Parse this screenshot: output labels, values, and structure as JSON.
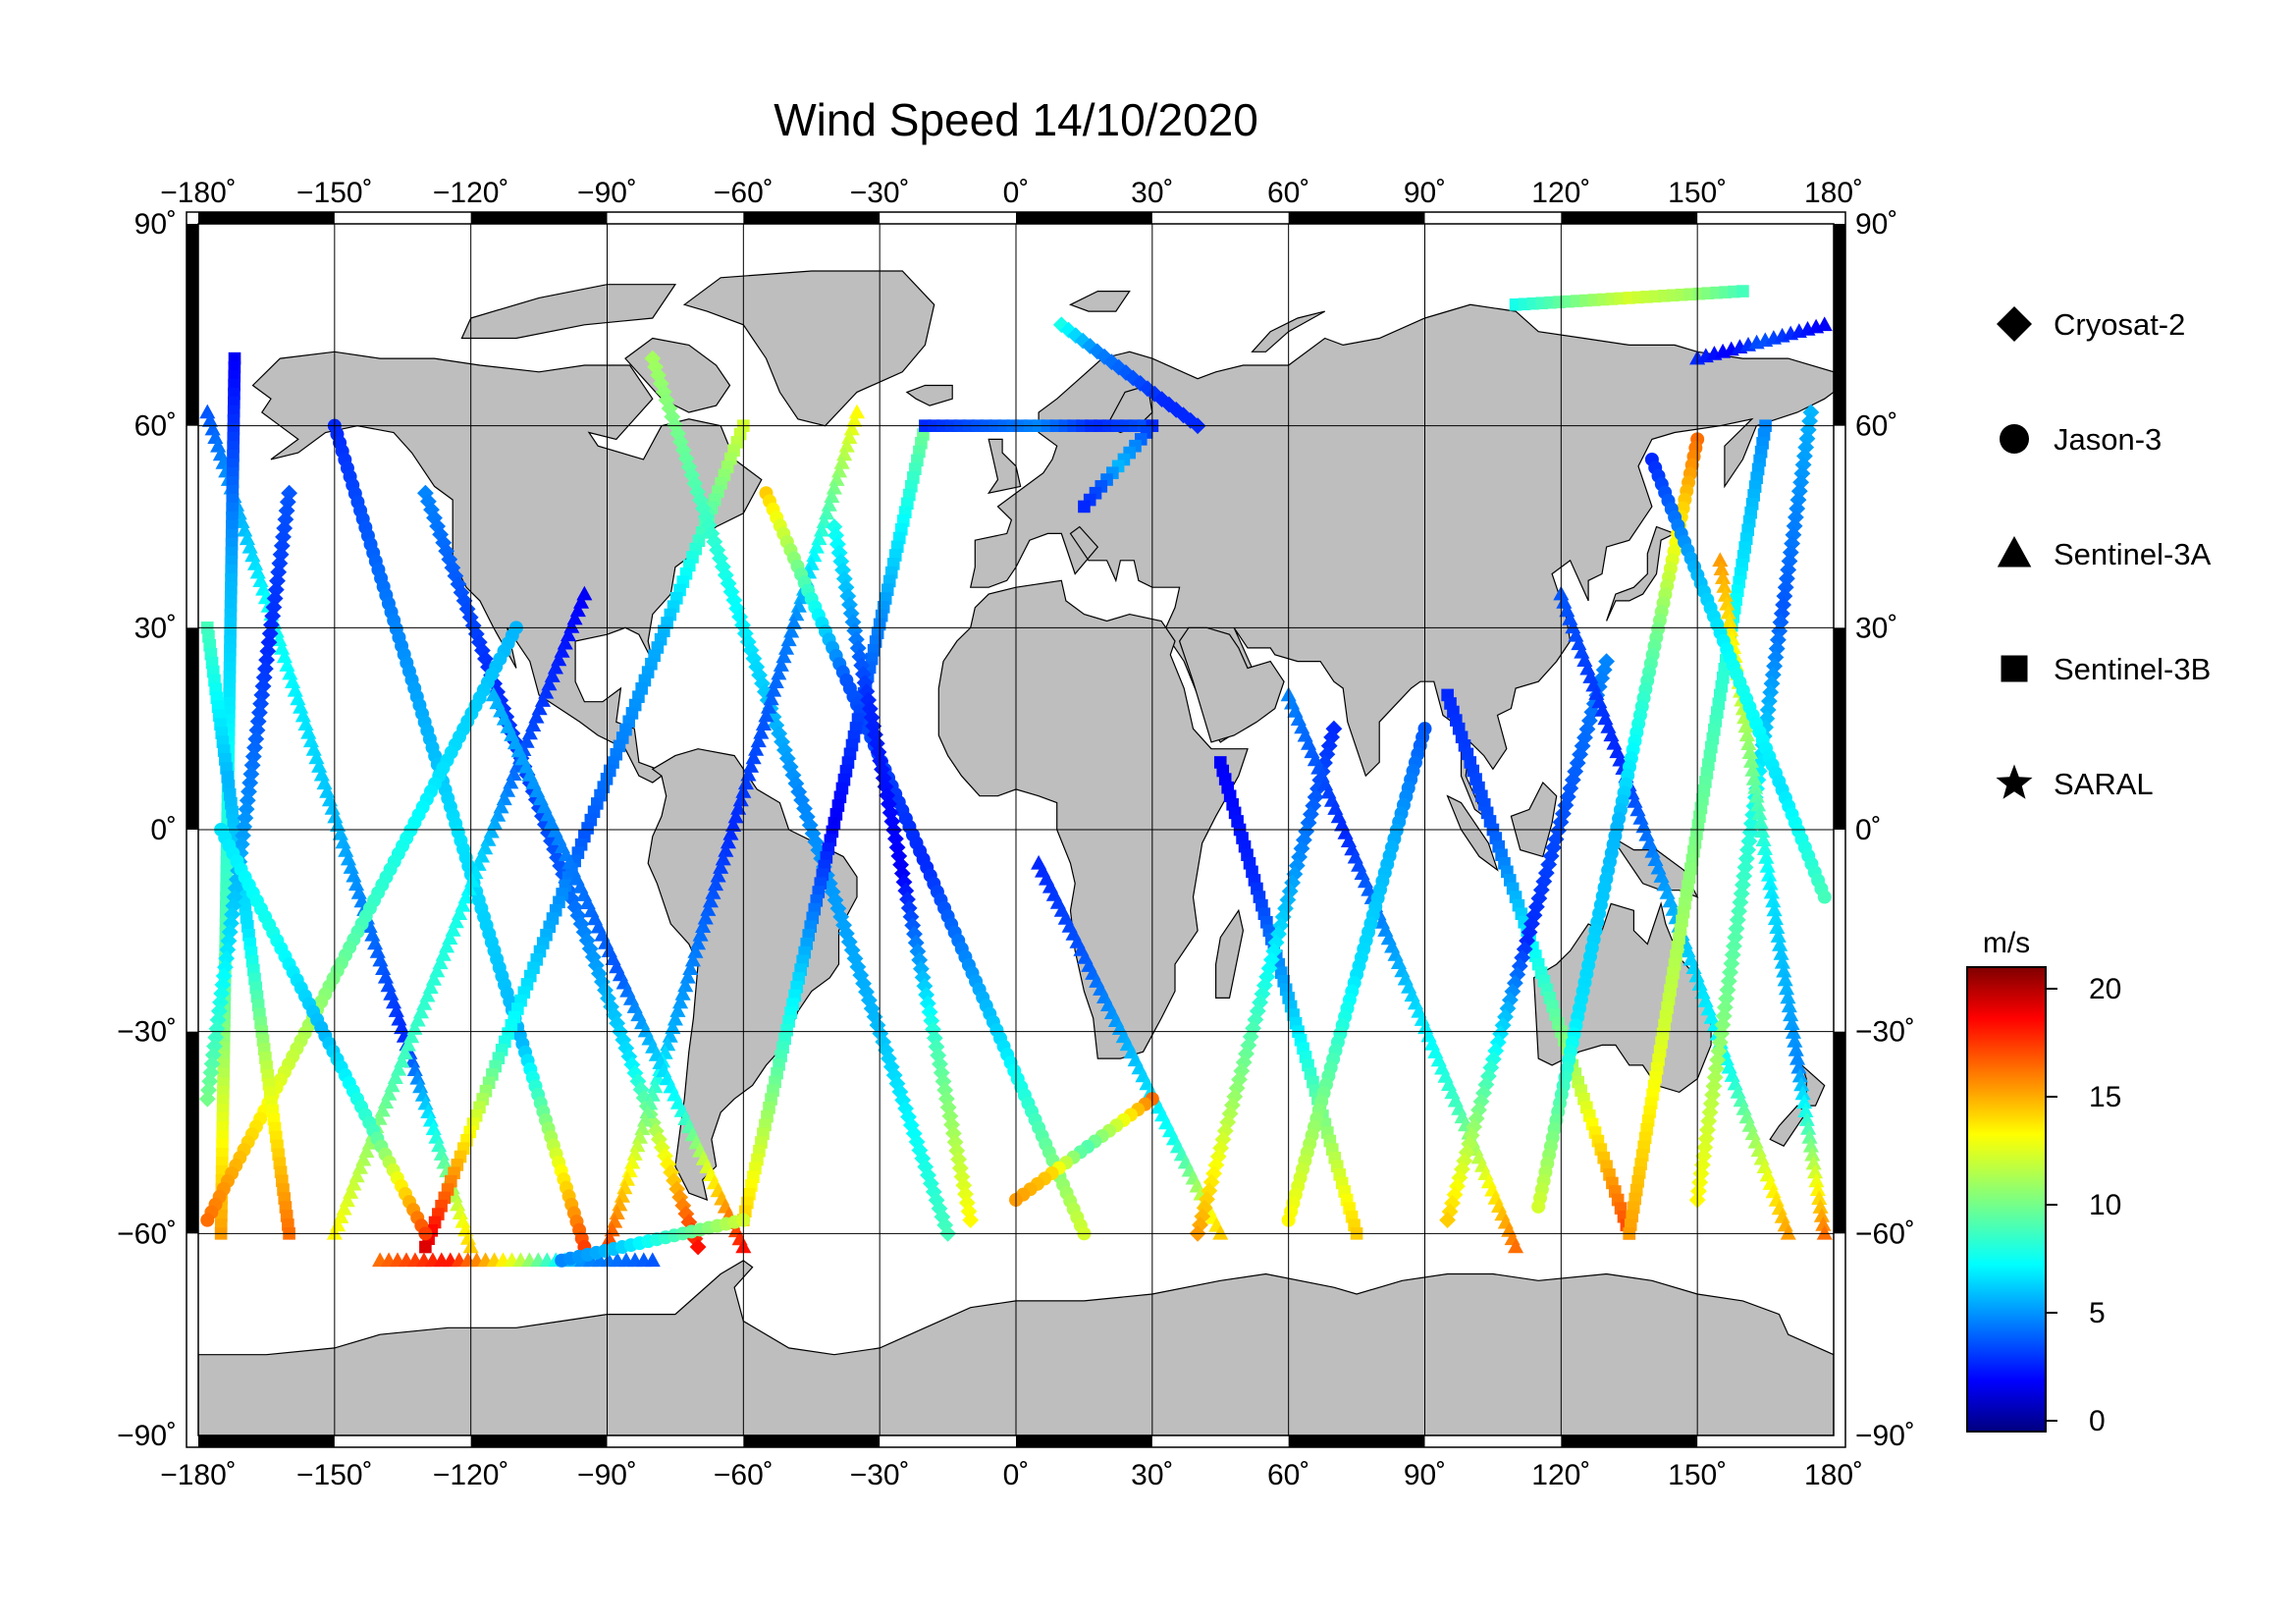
{
  "map": {
    "title": "Wind Speed 14/10/2020",
    "projection": "equirectangular",
    "lon_range": [
      -180,
      180
    ],
    "lat_range": [
      -90,
      90
    ],
    "grid": true,
    "lon_ticks": [
      -180,
      -150,
      -120,
      -90,
      -60,
      -30,
      0,
      30,
      60,
      90,
      120,
      150,
      180
    ],
    "lat_ticks": [
      90,
      60,
      30,
      0,
      -30,
      -60,
      -90
    ],
    "lon_tick_labels": [
      "−180˚",
      "−150˚",
      "−120˚",
      "−90˚",
      "−60˚",
      "−30˚",
      "0˚",
      "30˚",
      "60˚",
      "90˚",
      "120˚",
      "150˚",
      "180˚"
    ],
    "lat_tick_labels": [
      "90˚",
      "60˚",
      "30˚",
      "0˚",
      "−30˚",
      "−60˚",
      "−90˚"
    ],
    "land_color": "#bebebe",
    "ocean_color": "#ffffff"
  },
  "legend": {
    "placement": "right",
    "items": [
      {
        "label": "Cryosat-2",
        "marker": "diamond"
      },
      {
        "label": "Jason-3",
        "marker": "circle"
      },
      {
        "label": "Sentinel-3A",
        "marker": "triangle"
      },
      {
        "label": "Sentinel-3B",
        "marker": "square"
      },
      {
        "label": "SARAL",
        "marker": "star"
      }
    ]
  },
  "colorbar": {
    "unit": "m/s",
    "min": -0.5,
    "max": 21,
    "ticks": [
      0,
      5,
      10,
      15,
      20
    ],
    "tick_labels": [
      "0",
      "5",
      "10",
      "15",
      "20"
    ],
    "colormap": "jet"
  },
  "chart_data": {
    "type": "scatter",
    "x_name": "longitude",
    "y_name": "latitude",
    "value_name": "wind speed",
    "tracks": [
      {
        "satellite": "Sentinel-3A",
        "start": [
          -178,
          62
        ],
        "end": [
          -120,
          -62
        ],
        "speed": [
          4,
          8,
          6,
          3,
          14
        ]
      },
      {
        "satellite": "Jason-3",
        "start": [
          -150,
          60
        ],
        "end": [
          -95,
          -62
        ],
        "speed": [
          3,
          5,
          7,
          6,
          17
        ]
      },
      {
        "satellite": "Sentinel-3B",
        "start": [
          -172,
          70
        ],
        "end": [
          -175,
          -60
        ],
        "speed": [
          2,
          6,
          8,
          10,
          15
        ]
      },
      {
        "satellite": "Cryosat-2",
        "start": [
          -130,
          50
        ],
        "end": [
          -70,
          -62
        ],
        "speed": [
          5,
          3,
          4,
          7,
          18
        ]
      },
      {
        "satellite": "Sentinel-3A",
        "start": [
          -95,
          35
        ],
        "end": [
          -150,
          -60
        ],
        "speed": [
          2,
          4,
          8,
          9,
          13
        ]
      },
      {
        "satellite": "Jason-3",
        "start": [
          -110,
          30
        ],
        "end": [
          -178,
          -58
        ],
        "speed": [
          6,
          7,
          9,
          12,
          16
        ]
      },
      {
        "satellite": "Sentinel-3B",
        "start": [
          -60,
          60
        ],
        "end": [
          -130,
          -62
        ],
        "speed": [
          12,
          6,
          4,
          8,
          19
        ]
      },
      {
        "satellite": "Cryosat-2",
        "start": [
          -80,
          70
        ],
        "end": [
          -15,
          -60
        ],
        "speed": [
          11,
          8,
          5,
          6,
          9
        ]
      },
      {
        "satellite": "Sentinel-3A",
        "start": [
          -35,
          62
        ],
        "end": [
          -90,
          -62
        ],
        "speed": [
          13,
          5,
          3,
          6,
          17
        ]
      },
      {
        "satellite": "Jason-3",
        "start": [
          -55,
          50
        ],
        "end": [
          15,
          -60
        ],
        "speed": [
          14,
          4,
          3,
          7,
          12
        ]
      },
      {
        "satellite": "Sentinel-3B",
        "start": [
          -20,
          60
        ],
        "end": [
          -60,
          -58
        ],
        "speed": [
          10,
          5,
          2,
          8,
          14
        ]
      },
      {
        "satellite": "Cryosat-2",
        "start": [
          -40,
          45
        ],
        "end": [
          -10,
          -58
        ],
        "speed": [
          8,
          3,
          2,
          9,
          13
        ]
      },
      {
        "satellite": "Sentinel-3A",
        "start": [
          5,
          -5
        ],
        "end": [
          45,
          -60
        ],
        "speed": [
          3,
          4,
          6,
          8,
          14
        ]
      },
      {
        "satellite": "Jason-3",
        "start": [
          30,
          -40
        ],
        "end": [
          0,
          -55
        ],
        "speed": [
          16,
          12,
          9,
          14,
          15
        ]
      },
      {
        "satellite": "Sentinel-3B",
        "start": [
          45,
          10
        ],
        "end": [
          75,
          -60
        ],
        "speed": [
          2,
          3,
          6,
          10,
          14
        ]
      },
      {
        "satellite": "Cryosat-2",
        "start": [
          70,
          15
        ],
        "end": [
          40,
          -60
        ],
        "speed": [
          3,
          5,
          8,
          11,
          15
        ]
      },
      {
        "satellite": "Sentinel-3A",
        "start": [
          60,
          20
        ],
        "end": [
          110,
          -62
        ],
        "speed": [
          5,
          3,
          6,
          9,
          16
        ]
      },
      {
        "satellite": "Jason-3",
        "start": [
          90,
          15
        ],
        "end": [
          60,
          -58
        ],
        "speed": [
          4,
          6,
          7,
          10,
          13
        ]
      },
      {
        "satellite": "Sentinel-3B",
        "start": [
          95,
          20
        ],
        "end": [
          135,
          -60
        ],
        "speed": [
          3,
          4,
          8,
          12,
          17
        ]
      },
      {
        "satellite": "Cryosat-2",
        "start": [
          130,
          25
        ],
        "end": [
          95,
          -58
        ],
        "speed": [
          5,
          4,
          3,
          9,
          14
        ]
      },
      {
        "satellite": "Sentinel-3A",
        "start": [
          120,
          35
        ],
        "end": [
          170,
          -60
        ],
        "speed": [
          4,
          3,
          6,
          8,
          15
        ]
      },
      {
        "satellite": "Jason-3",
        "start": [
          150,
          58
        ],
        "end": [
          115,
          -56
        ],
        "speed": [
          16,
          10,
          6,
          7,
          12
        ]
      },
      {
        "satellite": "Sentinel-3B",
        "start": [
          165,
          60
        ],
        "end": [
          135,
          -60
        ],
        "speed": [
          5,
          8,
          10,
          12,
          15
        ]
      },
      {
        "satellite": "Cryosat-2",
        "start": [
          175,
          62
        ],
        "end": [
          150,
          -55
        ],
        "speed": [
          6,
          4,
          8,
          10,
          13
        ]
      },
      {
        "satellite": "Sentinel-3A",
        "start": [
          155,
          40
        ],
        "end": [
          178,
          -60
        ],
        "speed": [
          15,
          11,
          7,
          5,
          16
        ]
      },
      {
        "satellite": "Jason-3",
        "start": [
          140,
          55
        ],
        "end": [
          178,
          -10
        ],
        "speed": [
          3,
          6,
          8,
          7,
          9
        ]
      },
      {
        "satellite": "Sentinel-3B",
        "start": [
          -178,
          30
        ],
        "end": [
          -160,
          -60
        ],
        "speed": [
          9,
          6,
          7,
          12,
          16
        ]
      },
      {
        "satellite": "Cryosat-2",
        "start": [
          -160,
          50
        ],
        "end": [
          -178,
          -40
        ],
        "speed": [
          4,
          3,
          5,
          7,
          10
        ]
      },
      {
        "satellite": "Sentinel-3A",
        "start": [
          -115,
          20
        ],
        "end": [
          -60,
          -62
        ],
        "speed": [
          6,
          5,
          4,
          8,
          18
        ]
      },
      {
        "satellite": "Jason-3",
        "start": [
          -175,
          0
        ],
        "end": [
          -130,
          -60
        ],
        "speed": [
          7,
          8,
          6,
          9,
          17
        ]
      },
      {
        "satellite": "Sentinel-3B",
        "start": [
          -20,
          60
        ],
        "end": [
          30,
          60
        ],
        "speed": [
          3,
          4,
          5,
          3,
          4
        ]
      },
      {
        "satellite": "Sentinel-3A",
        "start": [
          -140,
          -64
        ],
        "end": [
          -80,
          -64
        ],
        "speed": [
          16,
          18,
          12,
          5,
          4
        ]
      },
      {
        "satellite": "Jason-3",
        "start": [
          -100,
          -64
        ],
        "end": [
          -60,
          -58
        ],
        "speed": [
          5,
          6,
          8,
          10,
          12
        ]
      },
      {
        "satellite": "Sentinel-3B",
        "start": [
          110,
          78
        ],
        "end": [
          160,
          80
        ],
        "speed": [
          8,
          10,
          12,
          11,
          9
        ]
      },
      {
        "satellite": "Sentinel-3A",
        "start": [
          150,
          70
        ],
        "end": [
          178,
          75
        ],
        "speed": [
          3,
          2,
          4,
          3,
          2
        ]
      },
      {
        "satellite": "Cryosat-2",
        "start": [
          10,
          75
        ],
        "end": [
          40,
          60
        ],
        "speed": [
          8,
          5,
          4,
          3,
          3
        ]
      },
      {
        "satellite": "Sentinel-3B",
        "start": [
          30,
          60
        ],
        "end": [
          15,
          48
        ],
        "speed": [
          3,
          5,
          6,
          4,
          3
        ]
      }
    ]
  }
}
